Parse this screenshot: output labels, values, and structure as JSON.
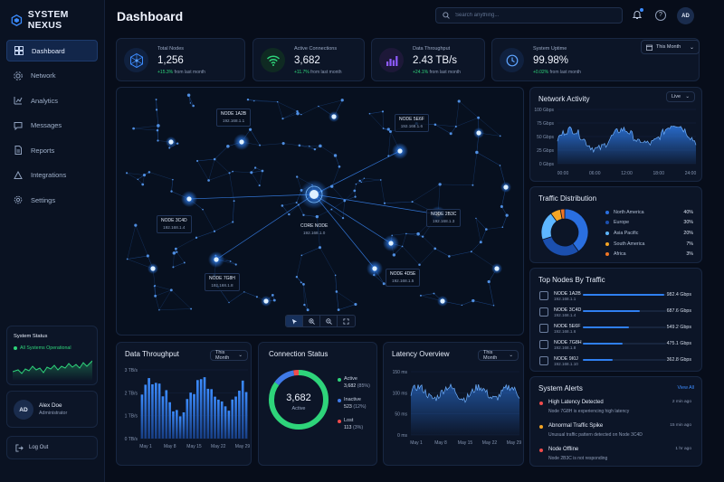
{
  "brand": {
    "name": "SYSTEM NEXUS"
  },
  "sidebar": {
    "items": [
      {
        "label": "Dashboard",
        "icon": "dashboard-icon",
        "active": true
      },
      {
        "label": "Network",
        "icon": "network-icon"
      },
      {
        "label": "Analytics",
        "icon": "analytics-icon"
      },
      {
        "label": "Messages",
        "icon": "messages-icon"
      },
      {
        "label": "Reports",
        "icon": "reports-icon"
      },
      {
        "label": "Integrations",
        "icon": "integrations-icon"
      },
      {
        "label": "Settings",
        "icon": "settings-icon"
      }
    ],
    "system_status": {
      "title": "System Status",
      "text": "All Systems Operational"
    },
    "user": {
      "initials": "AD",
      "name": "Alex Doe",
      "role": "Administrator"
    },
    "logout": "Log Out"
  },
  "header": {
    "title": "Dashboard",
    "search_placeholder": "Search anything...",
    "avatar": "AD"
  },
  "period_selector": "This Month",
  "kpis": [
    {
      "label": "Total Nodes",
      "value": "1,256",
      "change": "+15.3%",
      "suffix": "from last month",
      "icon": "nodes-icon"
    },
    {
      "label": "Active Connections",
      "value": "3,682",
      "change": "+11.7%",
      "suffix": "from last month",
      "icon": "wifi-icon"
    },
    {
      "label": "Data Throughput",
      "value": "2.43 TB/s",
      "change": "+24.1%",
      "suffix": "from last month",
      "icon": "bar-chart-icon"
    },
    {
      "label": "System Uptime",
      "value": "99.98%",
      "change": "+0.02%",
      "suffix": "from last month",
      "icon": "clock-icon"
    }
  ],
  "network_map": {
    "nodes": [
      {
        "name": "NODE 1A2B",
        "ip": "192.168.1.1"
      },
      {
        "name": "NODE 5E6F",
        "ip": "192.168.1.6"
      },
      {
        "name": "NODE 3C4D",
        "ip": "192.168.1.4"
      },
      {
        "name": "CORE NODE",
        "ip": "192.168.1.0"
      },
      {
        "name": "NODE 2B3C",
        "ip": "192.168.1.3"
      },
      {
        "name": "NODE 7G8H",
        "ip": "192.168.1.8"
      },
      {
        "name": "NODE 4D5E",
        "ip": "192.168.1.5"
      }
    ],
    "tools": [
      "cursor-icon",
      "zoom-in-icon",
      "zoom-out-icon",
      "fullscreen-icon"
    ]
  },
  "network_activity": {
    "title": "Network Activity",
    "mode": "Live",
    "y_ticks": [
      "100 Gbps",
      "75 Gbps",
      "50 Gbps",
      "25 Gbps",
      "0 Gbps"
    ],
    "x_ticks": [
      "00:00",
      "06:00",
      "12:00",
      "18:00",
      "24:00"
    ]
  },
  "traffic_distribution": {
    "title": "Traffic Distribution",
    "items": [
      {
        "label": "North America",
        "pct": "40%",
        "value": 40,
        "color": "#2a6fe0"
      },
      {
        "label": "Europe",
        "pct": "30%",
        "value": 30,
        "color": "#1b4fae"
      },
      {
        "label": "Asia Pacific",
        "pct": "20%",
        "value": 20,
        "color": "#5eb6ff"
      },
      {
        "label": "South America",
        "pct": "7%",
        "value": 7,
        "color": "#f5a524"
      },
      {
        "label": "Africa",
        "pct": "3%",
        "value": 3,
        "color": "#f07524"
      }
    ]
  },
  "top_nodes": {
    "title": "Top Nodes By Traffic",
    "items": [
      {
        "name": "NODE 1A2B",
        "ip": "192.168.1.1",
        "value": "982.4 Gbps",
        "level": 0.98
      },
      {
        "name": "NODE 3C4D",
        "ip": "192.168.1.4",
        "value": "687.6 Gbps",
        "level": 0.69
      },
      {
        "name": "NODE 5E6F",
        "ip": "192.168.1.6",
        "value": "549.2 Gbps",
        "level": 0.55
      },
      {
        "name": "NODE 7G8H",
        "ip": "192.168.1.8",
        "value": "475.1 Gbps",
        "level": 0.48
      },
      {
        "name": "NODE 9I0J",
        "ip": "192.168.1.10",
        "value": "362.8 Gbps",
        "level": 0.36
      }
    ]
  },
  "alerts": {
    "title": "System Alerts",
    "view_all": "View All",
    "items": [
      {
        "title": "High Latency Detected",
        "desc": "Node 7G8H is experiencing high latency",
        "time": "2 min ago",
        "color": "#ef4b4b"
      },
      {
        "title": "Abnormal Traffic Spike",
        "desc": "Unusual traffic pattern detected on Node 3C4D",
        "time": "15 min ago",
        "color": "#f5a524"
      },
      {
        "title": "Node Offline",
        "desc": "Node 2B3C is not responding",
        "time": "1 hr ago",
        "color": "#ef4b4b"
      }
    ]
  },
  "data_throughput": {
    "title": "Data Throughput",
    "period": "This Month",
    "y_ticks": [
      "3 TB/s",
      "2 TB/s",
      "1 TB/s",
      "0 TB/s"
    ],
    "x_ticks": [
      "May 1",
      "May 8",
      "May 15",
      "May 22",
      "May 29"
    ]
  },
  "connection_status": {
    "title": "Connection Status",
    "center_value": "3,682",
    "center_label": "Active",
    "items": [
      {
        "label": "Active",
        "value": "3,682",
        "pct": "(85%)",
        "fraction": 0.85,
        "color": "#2ed47a"
      },
      {
        "label": "Inactive",
        "value": "523",
        "pct": "(12%)",
        "fraction": 0.12,
        "color": "#3f7ae8"
      },
      {
        "label": "Lost",
        "value": "113",
        "pct": "(3%)",
        "fraction": 0.03,
        "color": "#ef4b4b"
      }
    ]
  },
  "latency": {
    "title": "Latency Overview",
    "period": "This Month",
    "y_ticks": [
      "150 ms",
      "100 ms",
      "50 ms",
      "0 ms"
    ],
    "x_ticks": [
      "May 1",
      "May 8",
      "May 15",
      "May 22",
      "May 29"
    ]
  },
  "colors": {
    "accent": "#2f7ff0",
    "success": "#2ed47a",
    "danger": "#ef4b4b",
    "warning": "#f5a524"
  }
}
